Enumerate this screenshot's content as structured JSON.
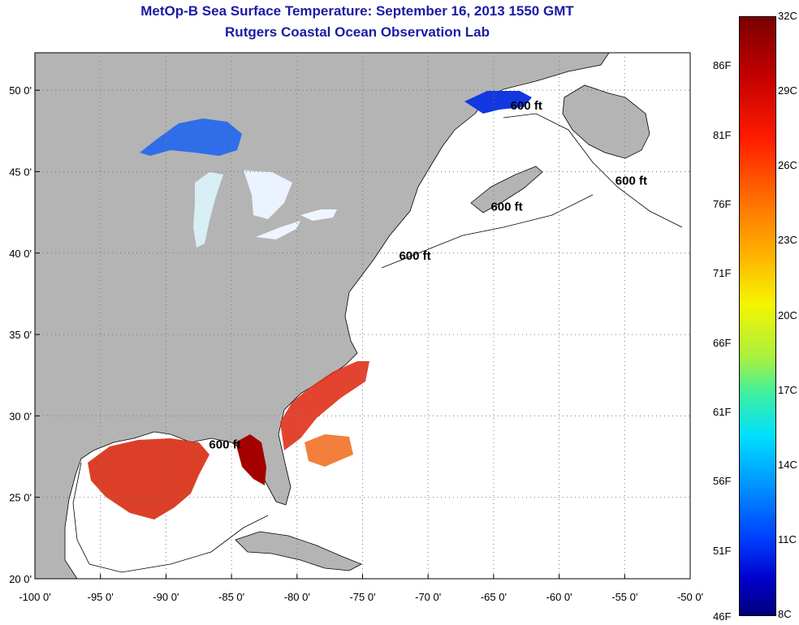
{
  "header": {
    "title": "MetOp-B Sea Surface Temperature:  September 16, 2013 1550 GMT",
    "subtitle": "Rutgers Coastal Ocean Observation Lab"
  },
  "map": {
    "lon_range": [
      -100,
      -50
    ],
    "lat_range": [
      20,
      52.3
    ],
    "grid": true,
    "x_ticks": [
      {
        "value": -100,
        "label": "-100 0'"
      },
      {
        "value": -95,
        "label": "-95 0'"
      },
      {
        "value": -90,
        "label": "-90 0'"
      },
      {
        "value": -85,
        "label": "-85 0'"
      },
      {
        "value": -80,
        "label": "-80 0'"
      },
      {
        "value": -75,
        "label": "-75 0'"
      },
      {
        "value": -70,
        "label": "-70 0'"
      },
      {
        "value": -65,
        "label": "-65 0'"
      },
      {
        "value": -60,
        "label": "-60 0'"
      },
      {
        "value": -55,
        "label": "-55 0'"
      },
      {
        "value": -50,
        "label": "-50 0'"
      }
    ],
    "y_ticks": [
      {
        "value": 20,
        "label": "20 0'"
      },
      {
        "value": 25,
        "label": "25 0'"
      },
      {
        "value": 30,
        "label": "30 0'"
      },
      {
        "value": 35,
        "label": "35 0'"
      },
      {
        "value": 40,
        "label": "40 0'"
      },
      {
        "value": 45,
        "label": "45 0'"
      },
      {
        "value": 50,
        "label": "50 0'"
      }
    ],
    "contour_labels": [
      {
        "text": "600 ft",
        "lon": -62.5,
        "lat": 48.8
      },
      {
        "text": "600 ft",
        "lon": -54.5,
        "lat": 44.2
      },
      {
        "text": "600 ft",
        "lon": -64,
        "lat": 42.6
      },
      {
        "text": "600 ft",
        "lon": -71,
        "lat": 39.6
      },
      {
        "text": "600 ft",
        "lon": -85.5,
        "lat": 28
      }
    ],
    "colors": {
      "land": "#b4b4b4",
      "ocean": "#ffffff",
      "grid": "#888888"
    }
  },
  "colorbar": {
    "celsius": [
      {
        "value": 32,
        "label": "32C"
      },
      {
        "value": 29,
        "label": "29C"
      },
      {
        "value": 26,
        "label": "26C"
      },
      {
        "value": 23,
        "label": "23C"
      },
      {
        "value": 20,
        "label": "20C"
      },
      {
        "value": 17,
        "label": "17C"
      },
      {
        "value": 14,
        "label": "14C"
      },
      {
        "value": 11,
        "label": "11C"
      },
      {
        "value": 8,
        "label": "8C"
      }
    ],
    "fahrenheit": [
      {
        "value": 86,
        "label": "86F"
      },
      {
        "value": 81,
        "label": "81F"
      },
      {
        "value": 76,
        "label": "76F"
      },
      {
        "value": 71,
        "label": "71F"
      },
      {
        "value": 66,
        "label": "66F"
      },
      {
        "value": 61,
        "label": "61F"
      },
      {
        "value": 56,
        "label": "56F"
      },
      {
        "value": 51,
        "label": "51F"
      },
      {
        "value": 46,
        "label": "46F"
      }
    ],
    "range_c": [
      8,
      32
    ]
  }
}
